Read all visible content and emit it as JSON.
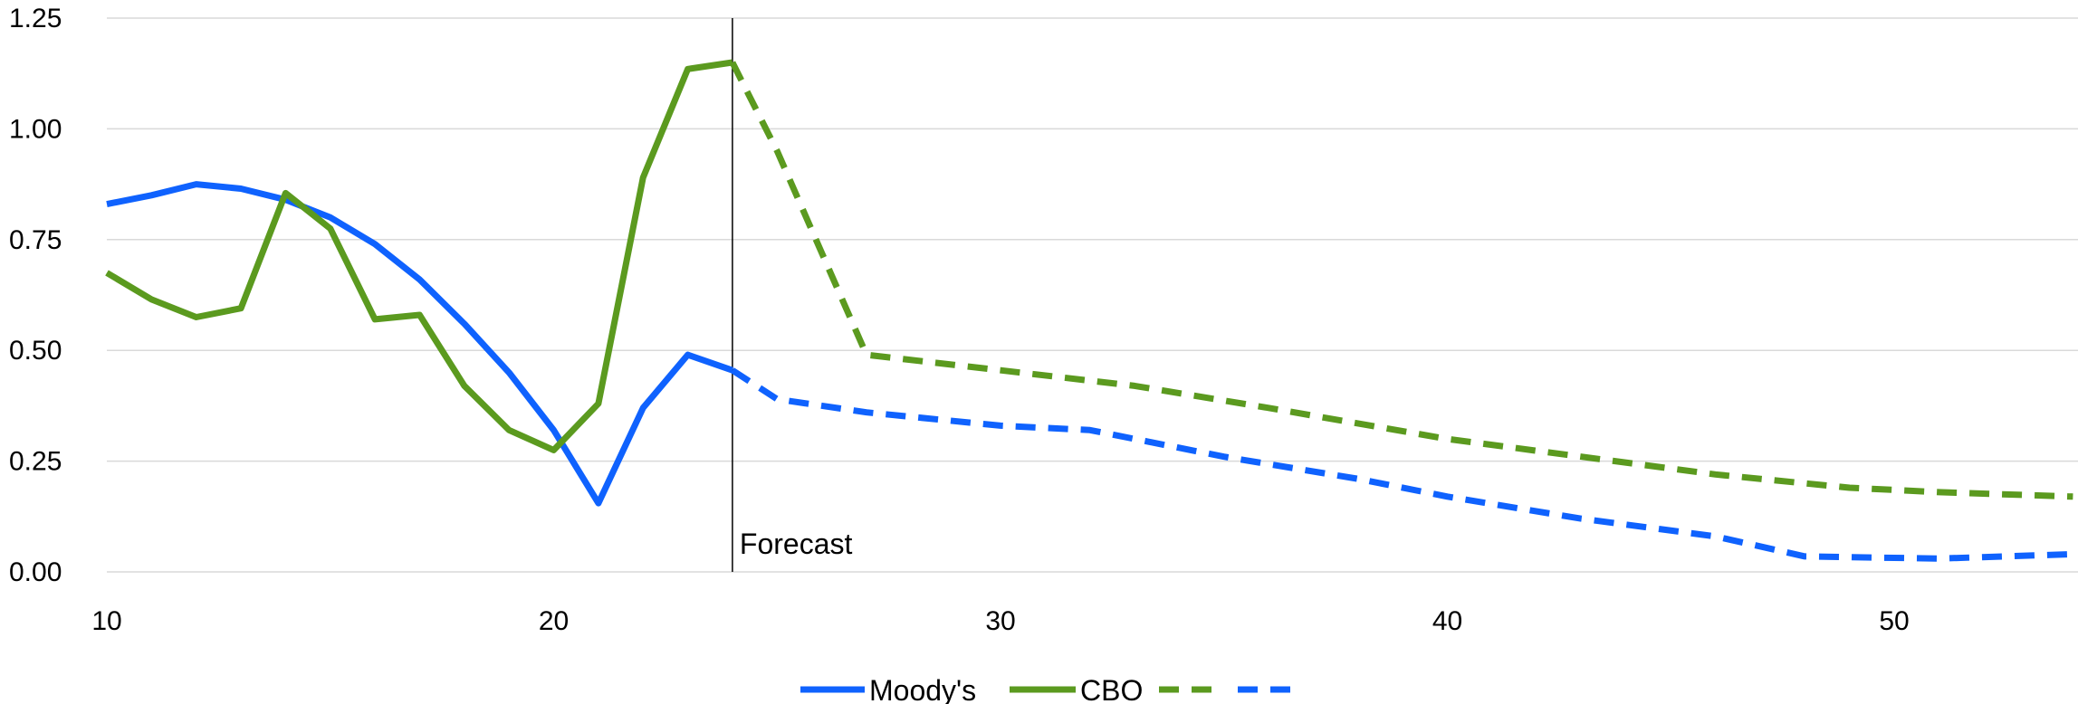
{
  "chart_data": {
    "type": "line",
    "title": "",
    "xlabel": "",
    "ylabel": "",
    "xlim": [
      10,
      54
    ],
    "ylim": [
      0,
      1.25
    ],
    "x_ticks": [
      "10",
      "20",
      "30",
      "40",
      "50"
    ],
    "y_ticks": [
      "0.00",
      "0.25",
      "0.50",
      "0.75",
      "1.00",
      "1.25"
    ],
    "grid": true,
    "legend_position": "bottom",
    "legend": [
      "Moody's",
      "CBO"
    ],
    "annotation": {
      "label": "Forecast",
      "x": 24
    },
    "series": [
      {
        "name": "Moody's",
        "color": "#0f62fe",
        "historical": [
          [
            10,
            0.83
          ],
          [
            11,
            0.85
          ],
          [
            12,
            0.875
          ],
          [
            13,
            0.865
          ],
          [
            14,
            0.84
          ],
          [
            15,
            0.8
          ],
          [
            16,
            0.74
          ],
          [
            17,
            0.66
          ],
          [
            18,
            0.56
          ],
          [
            19,
            0.45
          ],
          [
            20,
            0.32
          ],
          [
            21,
            0.155
          ],
          [
            22,
            0.37
          ],
          [
            23,
            0.49
          ],
          [
            24,
            0.455
          ]
        ],
        "forecast": [
          [
            24,
            0.455
          ],
          [
            25,
            0.39
          ],
          [
            27,
            0.36
          ],
          [
            30,
            0.33
          ],
          [
            32,
            0.32
          ],
          [
            35,
            0.26
          ],
          [
            38,
            0.21
          ],
          [
            40,
            0.17
          ],
          [
            43,
            0.12
          ],
          [
            46,
            0.08
          ],
          [
            48,
            0.035
          ],
          [
            51,
            0.03
          ],
          [
            54,
            0.04
          ]
        ]
      },
      {
        "name": "CBO",
        "color": "#5b9a1f",
        "historical": [
          [
            10,
            0.675
          ],
          [
            11,
            0.615
          ],
          [
            12,
            0.575
          ],
          [
            13,
            0.595
          ],
          [
            14,
            0.855
          ],
          [
            15,
            0.775
          ],
          [
            16,
            0.57
          ],
          [
            17,
            0.58
          ],
          [
            18,
            0.42
          ],
          [
            19,
            0.32
          ],
          [
            20,
            0.275
          ],
          [
            21,
            0.38
          ],
          [
            22,
            0.89
          ],
          [
            23,
            1.135
          ],
          [
            24,
            1.15
          ]
        ],
        "forecast": [
          [
            24,
            1.15
          ],
          [
            25,
            0.95
          ],
          [
            26,
            0.72
          ],
          [
            27,
            0.49
          ],
          [
            30,
            0.455
          ],
          [
            33,
            0.42
          ],
          [
            36,
            0.37
          ],
          [
            40,
            0.3
          ],
          [
            43,
            0.26
          ],
          [
            46,
            0.22
          ],
          [
            49,
            0.19
          ],
          [
            51,
            0.18
          ],
          [
            54,
            0.17
          ]
        ]
      }
    ]
  }
}
